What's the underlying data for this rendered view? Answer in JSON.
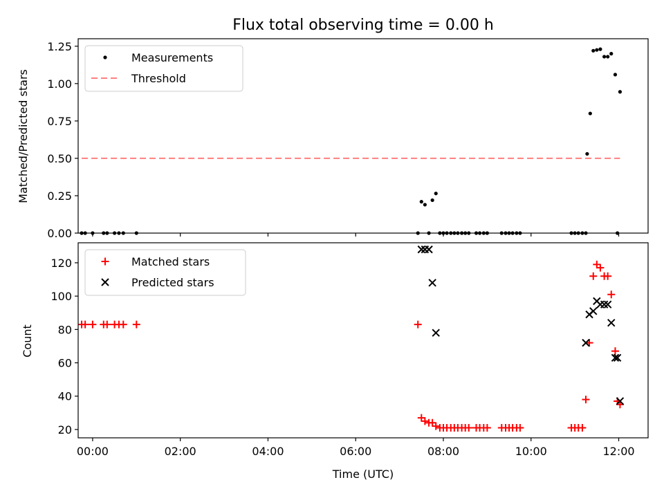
{
  "chart_data": [
    {
      "type": "scatter",
      "title": "Flux total observing time = 0.00 h",
      "xlabel": "",
      "ylabel": "Matched/Predicted stars",
      "xlim": [
        -0.33,
        12.67
      ],
      "ylim": [
        0,
        1.3
      ],
      "yticks": [
        0,
        0.25,
        0.5,
        0.75,
        1.0,
        1.25
      ],
      "ytick_labels": [
        "0.00",
        "0.25",
        "0.50",
        "0.75",
        "1.00",
        "1.25"
      ],
      "xticks": [
        0,
        2,
        4,
        6,
        8,
        10,
        12
      ],
      "legend": {
        "placement": "upper-left",
        "entries": [
          "Measurements",
          "Threshold"
        ]
      },
      "series": [
        {
          "name": "Measurements",
          "kind": "scatter",
          "marker": "dot",
          "color": "#000000",
          "x": [
            -0.25,
            -0.17,
            0.0,
            0.25,
            0.33,
            0.5,
            0.6,
            0.7,
            1.0,
            7.42,
            7.5,
            7.58,
            7.67,
            7.75,
            7.83,
            7.92,
            8.0,
            8.08,
            8.17,
            8.25,
            8.33,
            8.42,
            8.5,
            8.58,
            8.75,
            8.83,
            8.92,
            9.0,
            9.33,
            9.42,
            9.5,
            9.58,
            9.67,
            9.75,
            10.92,
            11.0,
            11.08,
            11.17,
            11.25,
            11.28,
            11.35,
            11.42,
            11.5,
            11.58,
            11.67,
            11.75,
            11.83,
            11.92,
            11.97,
            12.03
          ],
          "y": [
            0,
            0,
            0,
            0,
            0,
            0,
            0,
            0,
            0,
            0,
            0.21,
            0.19,
            0,
            0.22,
            0.265,
            0,
            0,
            0,
            0,
            0,
            0,
            0,
            0,
            0,
            0,
            0,
            0,
            0,
            0,
            0,
            0,
            0,
            0,
            0,
            0,
            0,
            0,
            0,
            0,
            0.53,
            0.8,
            1.22,
            1.225,
            1.23,
            1.18,
            1.18,
            1.2,
            1.06,
            0,
            0.945
          ]
        },
        {
          "name": "Threshold",
          "kind": "line",
          "style": "dashed",
          "color": "#ff7f7f",
          "x": [
            -0.25,
            12.03
          ],
          "y": [
            0.5,
            0.5
          ]
        }
      ]
    },
    {
      "type": "scatter",
      "title": "",
      "xlabel": "Time (UTC)",
      "ylabel": "Count",
      "xlim": [
        -0.33,
        12.67
      ],
      "ylim": [
        15,
        132
      ],
      "yticks": [
        20,
        40,
        60,
        80,
        100,
        120
      ],
      "ytick_labels": [
        "20",
        "40",
        "60",
        "80",
        "100",
        "120"
      ],
      "xticks": [
        0,
        2,
        4,
        6,
        8,
        10,
        12
      ],
      "xtick_labels": [
        "00:00",
        "02:00",
        "04:00",
        "06:00",
        "08:00",
        "10:00",
        "12:00"
      ],
      "legend": {
        "placement": "upper-left",
        "entries": [
          "Matched stars",
          "Predicted stars"
        ]
      },
      "series": [
        {
          "name": "Matched stars",
          "kind": "scatter",
          "marker": "plus",
          "color": "#ff0000",
          "x": [
            -0.25,
            -0.17,
            0.0,
            0.25,
            0.33,
            0.5,
            0.6,
            0.7,
            1.0,
            7.42,
            7.5,
            7.58,
            7.67,
            7.75,
            7.83,
            7.92,
            8.0,
            8.08,
            8.17,
            8.25,
            8.33,
            8.42,
            8.5,
            8.58,
            8.75,
            8.83,
            8.92,
            9.0,
            9.33,
            9.42,
            9.5,
            9.58,
            9.67,
            9.75,
            10.92,
            11.0,
            11.08,
            11.17,
            11.25,
            11.33,
            11.42,
            11.5,
            11.58,
            11.67,
            11.75,
            11.83,
            11.92,
            11.97,
            12.03
          ],
          "y": [
            83,
            83,
            83,
            83,
            83,
            83,
            83,
            83,
            83,
            83,
            27,
            25,
            24,
            24,
            22,
            21,
            21,
            21,
            21,
            21,
            21,
            21,
            21,
            21,
            21,
            21,
            21,
            21,
            21,
            21,
            21,
            21,
            21,
            21,
            21,
            21,
            21,
            21,
            38,
            72,
            112,
            119,
            117,
            112,
            112,
            101,
            67,
            37,
            35
          ]
        },
        {
          "name": "Predicted stars",
          "kind": "scatter",
          "marker": "x",
          "color": "#000000",
          "x": [
            7.5,
            7.58,
            7.67,
            7.75,
            7.83,
            11.25,
            11.33,
            11.42,
            11.5,
            11.58,
            11.67,
            11.75,
            11.83,
            11.92,
            11.97,
            12.03
          ],
          "y": [
            128,
            128,
            128,
            108,
            78,
            72,
            89,
            91,
            97,
            95,
            95,
            95,
            84,
            63,
            63,
            37
          ]
        }
      ]
    }
  ]
}
